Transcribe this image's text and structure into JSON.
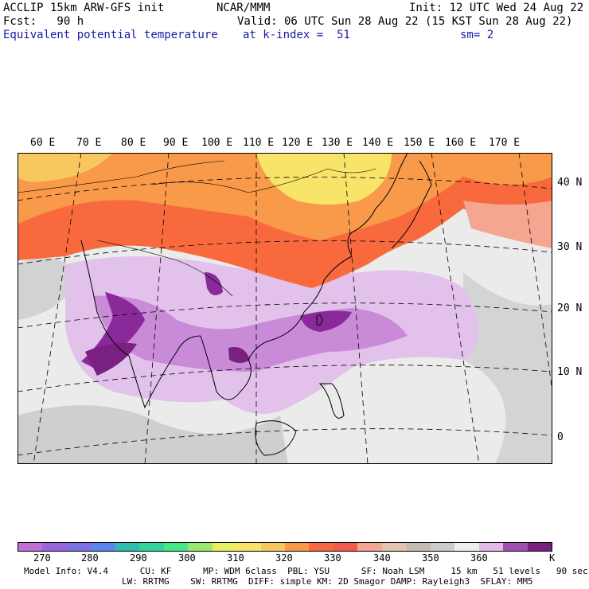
{
  "header": {
    "line1_left": "ACCLIP 15km ARW-GFS init",
    "line1_center": "NCAR/MMM",
    "line1_right": "Init: 12 UTC Wed 24 Aug 22",
    "line2_left": "Fcst:   90 h",
    "line2_right": "Valid: 06 UTC Sun 28 Aug 22 (15 KST Sun 28 Aug 22)",
    "line3_left": "Equivalent potential temperature",
    "line3_center": "at k-index =  51",
    "line3_right": "sm= 2"
  },
  "lon_labels": [
    "60 E",
    "70 E",
    "80 E",
    "90 E",
    "100 E",
    "110 E",
    "120 E",
    "130 E",
    "140 E",
    "150 E",
    "160 E",
    "170 E"
  ],
  "lat_labels": [
    "40 N",
    "30 N",
    "20 N",
    "10 N",
    "0"
  ],
  "colorbar": {
    "colors": [
      "#c070d8",
      "#9a66dc",
      "#7c72e6",
      "#5a86ee",
      "#2fbcb0",
      "#2fd89a",
      "#44e884",
      "#9ae870",
      "#e8f060",
      "#f8e468",
      "#f8c860",
      "#f89a4a",
      "#f86a3e",
      "#f25a4a",
      "#f4a690",
      "#e4c4b0",
      "#c8bcb0",
      "#cccccc",
      "#efefef",
      "#e0bce6",
      "#a050b0",
      "#7a2080"
    ],
    "ticks": [
      "270",
      "280",
      "290",
      "300",
      "310",
      "320",
      "330",
      "340",
      "350",
      "360"
    ],
    "unit": "K"
  },
  "model_info": {
    "line1": "Model Info: V4.4      CU: KF      MP: WDM 6class  PBL: YSU      SF: Noah LSM     15 km   51 levels   90 sec",
    "line2": "LW: RRTMG    SW: RRTMG  DIFF: simple KM: 2D Smagor DAMP: Rayleigh3  SFLAY: MM5"
  }
}
